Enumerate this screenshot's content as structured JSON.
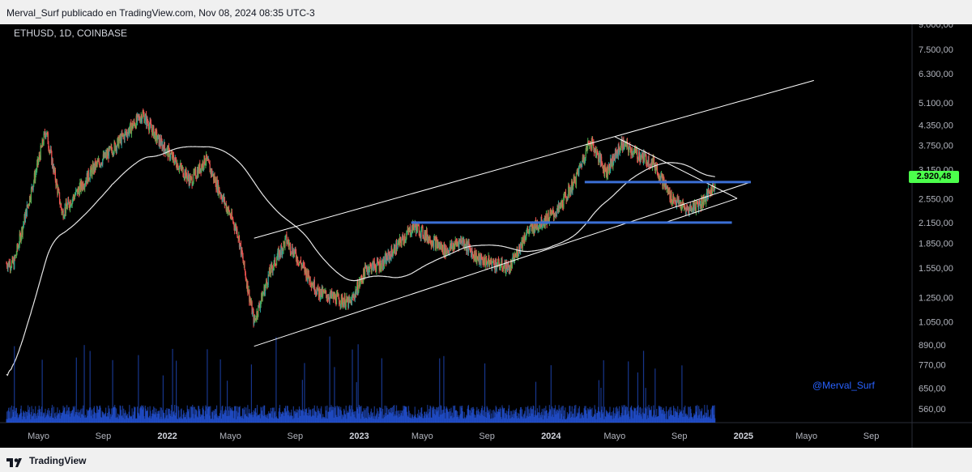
{
  "header": {
    "publish_line": "Merval_Surf publicado en TradingView.com, Nov 08, 2024 08:35 UTC-3"
  },
  "chart": {
    "symbol_line": "ETHUSD, 1D, COINBASE",
    "current_price_label": "2.920,48",
    "watermark": "@Merval_Surf"
  },
  "footer": {
    "brand": "TradingView"
  },
  "colors": {
    "up": "#26a69a",
    "up_alt": "#4caf50",
    "down": "#ef5350",
    "ma": "#e6e6e6",
    "support": "#3b6fd6",
    "channel": "#ffffff",
    "price_tag": "#4cff4c",
    "watermark": "#2962ff",
    "volume": "#2962ff"
  },
  "chart_data": {
    "type": "line",
    "title": "ETHUSD, 1D, COINBASE",
    "y_scale": "log",
    "y_ticks": [
      "9.000,00",
      "7.500,00",
      "6.300,00",
      "5.100,00",
      "4.350,00",
      "3.750,00",
      "3.150,00",
      "2.550,00",
      "2.150,00",
      "1.850,00",
      "1.550,00",
      "1.250,00",
      "1.050,00",
      "890,00",
      "770,00",
      "650,00",
      "560,00"
    ],
    "y_tick_values": [
      9000,
      7500,
      6300,
      5100,
      4350,
      3750,
      3150,
      2550,
      2150,
      1850,
      1550,
      1250,
      1050,
      890,
      770,
      650,
      560
    ],
    "x_ticks": [
      "Mayo",
      "Sep",
      "2022",
      "Mayo",
      "Sep",
      "2023",
      "Mayo",
      "Sep",
      "2024",
      "Mayo",
      "Sep",
      "2025",
      "Mayo",
      "Sep"
    ],
    "x_tick_bold": [
      false,
      false,
      true,
      false,
      false,
      true,
      false,
      false,
      true,
      false,
      false,
      true,
      false,
      false
    ],
    "series": [
      {
        "name": "ETHUSD",
        "x": [
          "2021-03",
          "2021-05",
          "2021-06",
          "2021-08",
          "2021-09",
          "2021-11",
          "2021-12",
          "2022-02",
          "2022-03",
          "2022-05",
          "2022-06",
          "2022-07",
          "2022-08",
          "2022-10",
          "2022-12",
          "2023-01",
          "2023-02",
          "2023-04",
          "2023-06",
          "2023-07",
          "2023-08",
          "2023-10",
          "2023-11",
          "2024-01",
          "2024-02",
          "2024-03",
          "2024-04",
          "2024-05",
          "2024-06",
          "2024-07",
          "2024-08",
          "2024-09",
          "2024-10",
          "2024-11"
        ],
        "values": [
          1600,
          4200,
          2300,
          3200,
          3600,
          4700,
          3900,
          2900,
          3400,
          2000,
          1050,
          1500,
          1900,
          1300,
          1200,
          1550,
          1600,
          2100,
          1750,
          1900,
          1650,
          1550,
          2000,
          2350,
          2900,
          3900,
          3100,
          3800,
          3500,
          3300,
          2600,
          2350,
          2500,
          2920
        ]
      }
    ],
    "horizontal_levels": [
      2880,
      2150
    ],
    "channel": {
      "upper": [
        [
          "2022-06",
          1920
        ],
        [
          "2025-05",
          6000
        ]
      ],
      "lower": [
        [
          "2022-06",
          880
        ],
        [
          "2025-01",
          2880
        ]
      ]
    }
  }
}
